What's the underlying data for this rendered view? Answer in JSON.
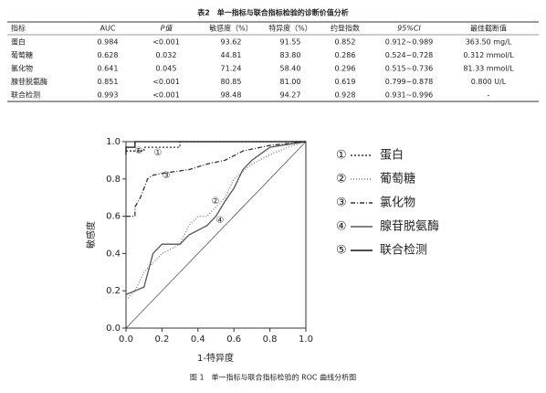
{
  "table": {
    "title": "表2　单一指标与联合指标检验的诊断价值分析",
    "header": [
      "指标",
      "AUC",
      "P值",
      "敏感度（%）",
      "特异度（%）",
      "约登指数",
      "95%CI",
      "最佳截断值"
    ],
    "rows": [
      [
        "蛋白",
        "0.984",
        "<0.001",
        "93.62",
        "91.55",
        "0.852",
        "0.912~0.989",
        "363.50 mg/L"
      ],
      [
        "葡萄糖",
        "0.628",
        "0.032",
        "44.81",
        "83.80",
        "0.286",
        "0.524~0.728",
        "0.312 mmol/L"
      ],
      [
        "氯化物",
        "0.641",
        "0.045",
        "71.24",
        "58.40",
        "0.296",
        "0.515~0.736",
        "81.33 mmol/L"
      ],
      [
        "腺苷脱氨酶",
        "0.851",
        "<0.001",
        "80.85",
        "81.00",
        "0.619",
        "0.799~0.878",
        "0.800 U/L"
      ],
      [
        "联合检测",
        "0.993",
        "<0.001",
        "98.48",
        "94.27",
        "0.928",
        "0.931~0.996",
        "-"
      ]
    ]
  },
  "chart_data": {
    "type": "line",
    "caption": "图 1　单一指标与联合指标检验的 ROC 曲线分析图",
    "x_label": "1-特异度",
    "y_label": "敏感度",
    "xlim": [
      0,
      1
    ],
    "ylim": [
      0,
      1
    ],
    "xticks": [
      {
        "value": 0,
        "label": "0.0"
      },
      {
        "value": 0.2,
        "label": "0.2"
      },
      {
        "value": 0.4,
        "label": "0.4"
      },
      {
        "value": 0.6,
        "label": "0.6"
      },
      {
        "value": 0.8,
        "label": "0.8"
      },
      {
        "value": 1,
        "label": "1.0"
      }
    ],
    "yticks": [
      {
        "value": 0,
        "label": "0.0"
      },
      {
        "value": 0.2,
        "label": "0.2"
      },
      {
        "value": 0.4,
        "label": "0.4"
      },
      {
        "value": 0.6,
        "label": "0.6"
      },
      {
        "value": 0.8,
        "label": "0.8"
      },
      {
        "value": 1,
        "label": "1.0"
      }
    ],
    "series": [
      {
        "name": "蛋白",
        "marker": "①",
        "color": "#333333",
        "dash": "2,2",
        "x": [
          0,
          0.1,
          0.1,
          0.3,
          0.3,
          1
        ],
        "values": [
          0.95,
          0.95,
          0.97,
          0.97,
          1,
          1
        ]
      },
      {
        "name": "葡萄糖",
        "marker": "②",
        "color": "#777777",
        "dash": "1,2",
        "x": [
          0,
          0.05,
          0.1,
          0.15,
          0.2,
          0.3,
          0.35,
          0.4,
          0.45,
          0.5,
          0.55,
          0.6,
          0.7,
          0.8,
          0.9,
          1
        ],
        "values": [
          0.15,
          0.2,
          0.3,
          0.35,
          0.4,
          0.45,
          0.55,
          0.6,
          0.6,
          0.65,
          0.7,
          0.8,
          0.88,
          0.93,
          0.97,
          1
        ]
      },
      {
        "name": "氯化物",
        "marker": "③",
        "color": "#333333",
        "dash": "5,2,1,2",
        "x": [
          0,
          0.05,
          0.05,
          0.08,
          0.1,
          0.12,
          0.15,
          0.2,
          0.35,
          0.45,
          0.55,
          0.65,
          0.8,
          1
        ],
        "values": [
          0.6,
          0.6,
          0.65,
          0.7,
          0.75,
          0.8,
          0.82,
          0.83,
          0.85,
          0.88,
          0.9,
          0.95,
          0.98,
          1
        ]
      },
      {
        "name": "腺苷脱氨酶",
        "marker": "④",
        "color": "#555555",
        "dash": "",
        "x": [
          0,
          0.05,
          0.1,
          0.15,
          0.2,
          0.3,
          0.35,
          0.45,
          0.5,
          0.55,
          0.6,
          0.65,
          0.7,
          0.8,
          1
        ],
        "values": [
          0.18,
          0.2,
          0.22,
          0.4,
          0.45,
          0.45,
          0.5,
          0.55,
          0.6,
          0.68,
          0.75,
          0.85,
          0.9,
          0.97,
          1
        ]
      },
      {
        "name": "联合检测",
        "marker": "⑤",
        "color": "#111111",
        "dash": "",
        "x": [
          0,
          0,
          0.05,
          0.05,
          1
        ],
        "values": [
          0.93,
          0.97,
          0.97,
          1,
          1
        ]
      }
    ]
  }
}
